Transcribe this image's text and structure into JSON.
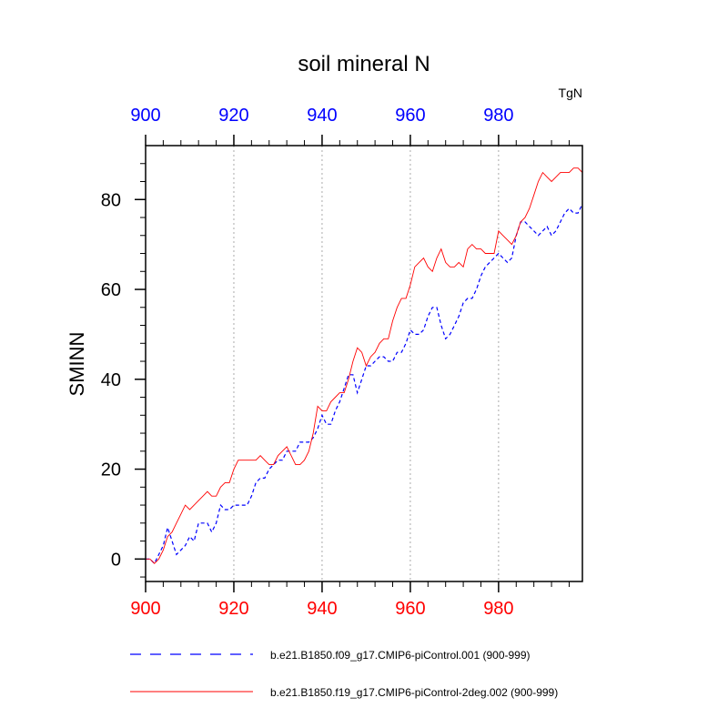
{
  "chart_data": {
    "type": "line",
    "title": "soil mineral N",
    "ylabel": "SMINN",
    "units": "TgN",
    "xlim": [
      900,
      999
    ],
    "ylim": [
      -5,
      92
    ],
    "bottom_ticks": [
      "900",
      "920",
      "940",
      "960",
      "980"
    ],
    "top_ticks": [
      "900",
      "920",
      "940",
      "960",
      "980"
    ],
    "y_ticks": [
      "0",
      "20",
      "40",
      "60",
      "80"
    ],
    "bottom_tick_values": [
      900,
      920,
      940,
      960,
      980
    ],
    "y_tick_values": [
      0,
      20,
      40,
      60,
      80
    ],
    "grid": "vertical dashed at major x ticks",
    "colors": {
      "top_axis": "#0000ff",
      "bottom_axis": "#ff0000",
      "series_1": "#0000ff",
      "series_2": "#ff0000",
      "grid": "#aaaaaa"
    },
    "x": [
      900,
      901,
      902,
      903,
      904,
      905,
      906,
      907,
      908,
      909,
      910,
      911,
      912,
      913,
      914,
      915,
      916,
      917,
      918,
      919,
      920,
      921,
      922,
      923,
      924,
      925,
      926,
      927,
      928,
      929,
      930,
      931,
      932,
      933,
      934,
      935,
      936,
      937,
      938,
      939,
      940,
      941,
      942,
      943,
      944,
      945,
      946,
      947,
      948,
      949,
      950,
      951,
      952,
      953,
      954,
      955,
      956,
      957,
      958,
      959,
      960,
      961,
      962,
      963,
      964,
      965,
      966,
      967,
      968,
      969,
      970,
      971,
      972,
      973,
      974,
      975,
      976,
      977,
      978,
      979,
      980,
      981,
      982,
      983,
      984,
      985,
      986,
      987,
      988,
      989,
      990,
      991,
      992,
      993,
      994,
      995,
      996,
      997,
      998,
      999
    ],
    "series": [
      {
        "name": "b.e21.B1850.f09_g17.CMIP6-piControl.001 (900-999)",
        "style": "dashed",
        "values": [
          0,
          0,
          -1,
          1,
          3,
          7,
          4,
          1,
          2,
          3,
          5,
          4,
          8,
          8,
          8,
          6,
          8,
          12,
          11,
          11,
          12,
          12,
          12,
          12,
          14,
          17,
          18,
          18,
          20,
          21,
          22,
          22,
          24,
          24,
          24,
          26,
          26,
          26,
          27,
          29,
          32,
          30,
          30,
          33,
          35,
          38,
          41,
          41,
          37,
          40,
          43,
          43,
          44,
          45,
          45,
          44,
          44,
          46,
          46,
          48,
          51,
          50,
          50,
          51,
          54,
          56,
          56,
          52,
          49,
          50,
          52,
          54,
          57,
          58,
          58,
          60,
          63,
          65,
          66,
          67,
          68,
          67,
          66,
          67,
          72,
          75,
          75,
          74,
          73,
          72,
          73,
          74,
          72,
          73,
          75,
          77,
          78,
          77,
          77,
          79
        ]
      },
      {
        "name": "b.e21.B1850.f19_g17.CMIP6-piControl-2deg.002 (900-999)",
        "style": "solid",
        "values": [
          0,
          0,
          -1,
          0,
          2,
          5,
          6,
          8,
          10,
          12,
          11,
          12,
          13,
          14,
          15,
          14,
          14,
          16,
          17,
          17,
          20,
          22,
          22,
          22,
          22,
          22,
          23,
          22,
          21,
          21,
          23,
          24,
          25,
          23,
          21,
          21,
          22,
          24,
          28,
          34,
          33,
          33,
          35,
          36,
          37,
          37,
          40,
          44,
          47,
          46,
          43,
          45,
          46,
          48,
          49,
          49,
          53,
          56,
          58,
          58,
          61,
          65,
          66,
          67,
          65,
          64,
          67,
          69,
          66,
          65,
          65,
          66,
          65,
          69,
          70,
          69,
          69,
          68,
          68,
          68,
          73,
          72,
          71,
          70,
          72,
          75,
          76,
          78,
          81,
          84,
          86,
          85,
          84,
          85,
          86,
          86,
          86,
          87,
          87,
          86
        ]
      }
    ]
  }
}
